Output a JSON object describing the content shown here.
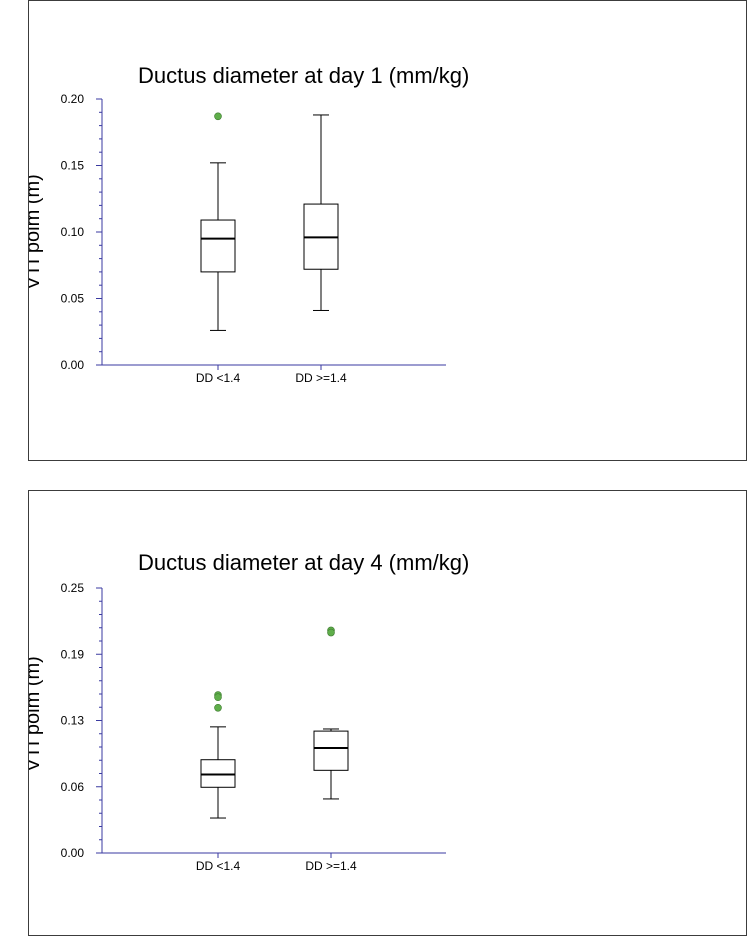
{
  "chart_data": [
    {
      "type": "box",
      "title": "Ductus diameter  at day 1 (mm/kg)",
      "xlabel": "",
      "ylabel": "VTI polm (m)",
      "ylim": [
        0,
        0.2
      ],
      "yticks": [
        "0.00",
        "0.05",
        "0.10",
        "0.15",
        "0.20"
      ],
      "ytick_values": [
        0,
        0.05,
        0.1,
        0.15,
        0.2
      ],
      "categories": [
        "DD <1.4",
        "DD >=1.4"
      ],
      "boxes": [
        {
          "whisker_low": 0.026,
          "q1": 0.07,
          "median": 0.095,
          "q3": 0.109,
          "whisker_high": 0.152,
          "outliers": [
            0.187
          ]
        },
        {
          "whisker_low": 0.041,
          "q1": 0.072,
          "median": 0.096,
          "q3": 0.121,
          "whisker_high": 0.188,
          "outliers": []
        }
      ],
      "grid": false,
      "outlier_color": "#5fae4a"
    },
    {
      "type": "box",
      "title": "Ductus diameter at day 4 (mm/kg)",
      "xlabel": "",
      "ylabel": "VTI polm (m)",
      "ylim": [
        0,
        0.25
      ],
      "yticks": [
        "0.00",
        "0.06",
        "0.13",
        "0.19",
        "0.25"
      ],
      "ytick_values": [
        0,
        0.0625,
        0.125,
        0.1875,
        0.25
      ],
      "categories": [
        "DD <1.4",
        "DD >=1.4"
      ],
      "boxes": [
        {
          "whisker_low": 0.033,
          "q1": 0.062,
          "median": 0.074,
          "q3": 0.088,
          "whisker_high": 0.119,
          "outliers": [
            0.149,
            0.147,
            0.137
          ]
        },
        {
          "whisker_low": 0.051,
          "q1": 0.078,
          "median": 0.099,
          "q3": 0.115,
          "whisker_high": 0.117,
          "outliers": [
            0.21,
            0.208
          ]
        }
      ],
      "grid": false,
      "outlier_color": "#5fae4a"
    }
  ]
}
